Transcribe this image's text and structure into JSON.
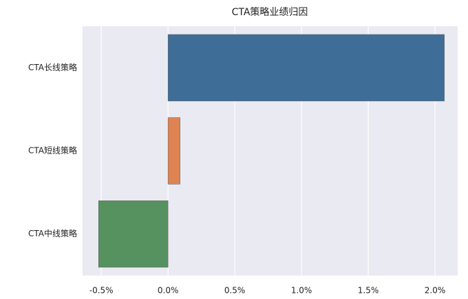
{
  "chart_data": {
    "type": "barh",
    "title": "CTA策略业绩归因",
    "categories": [
      "CTA长线策略",
      "CTA短线策略",
      "CTA中线策略"
    ],
    "values": [
      2.07,
      0.09,
      -0.52
    ],
    "colors": [
      "#3e6e98",
      "#dd8452",
      "#55925f"
    ],
    "xlim": [
      -0.64,
      2.17
    ],
    "xticks": [
      {
        "value": -0.5,
        "label": "-0.5%"
      },
      {
        "value": 0,
        "label": "0.0%"
      },
      {
        "value": 0.5,
        "label": "0.5%"
      },
      {
        "value": 1,
        "label": "1.0%"
      },
      {
        "value": 1.5,
        "label": "1.5%"
      },
      {
        "value": 2,
        "label": "2.0%"
      }
    ],
    "grid": true
  }
}
